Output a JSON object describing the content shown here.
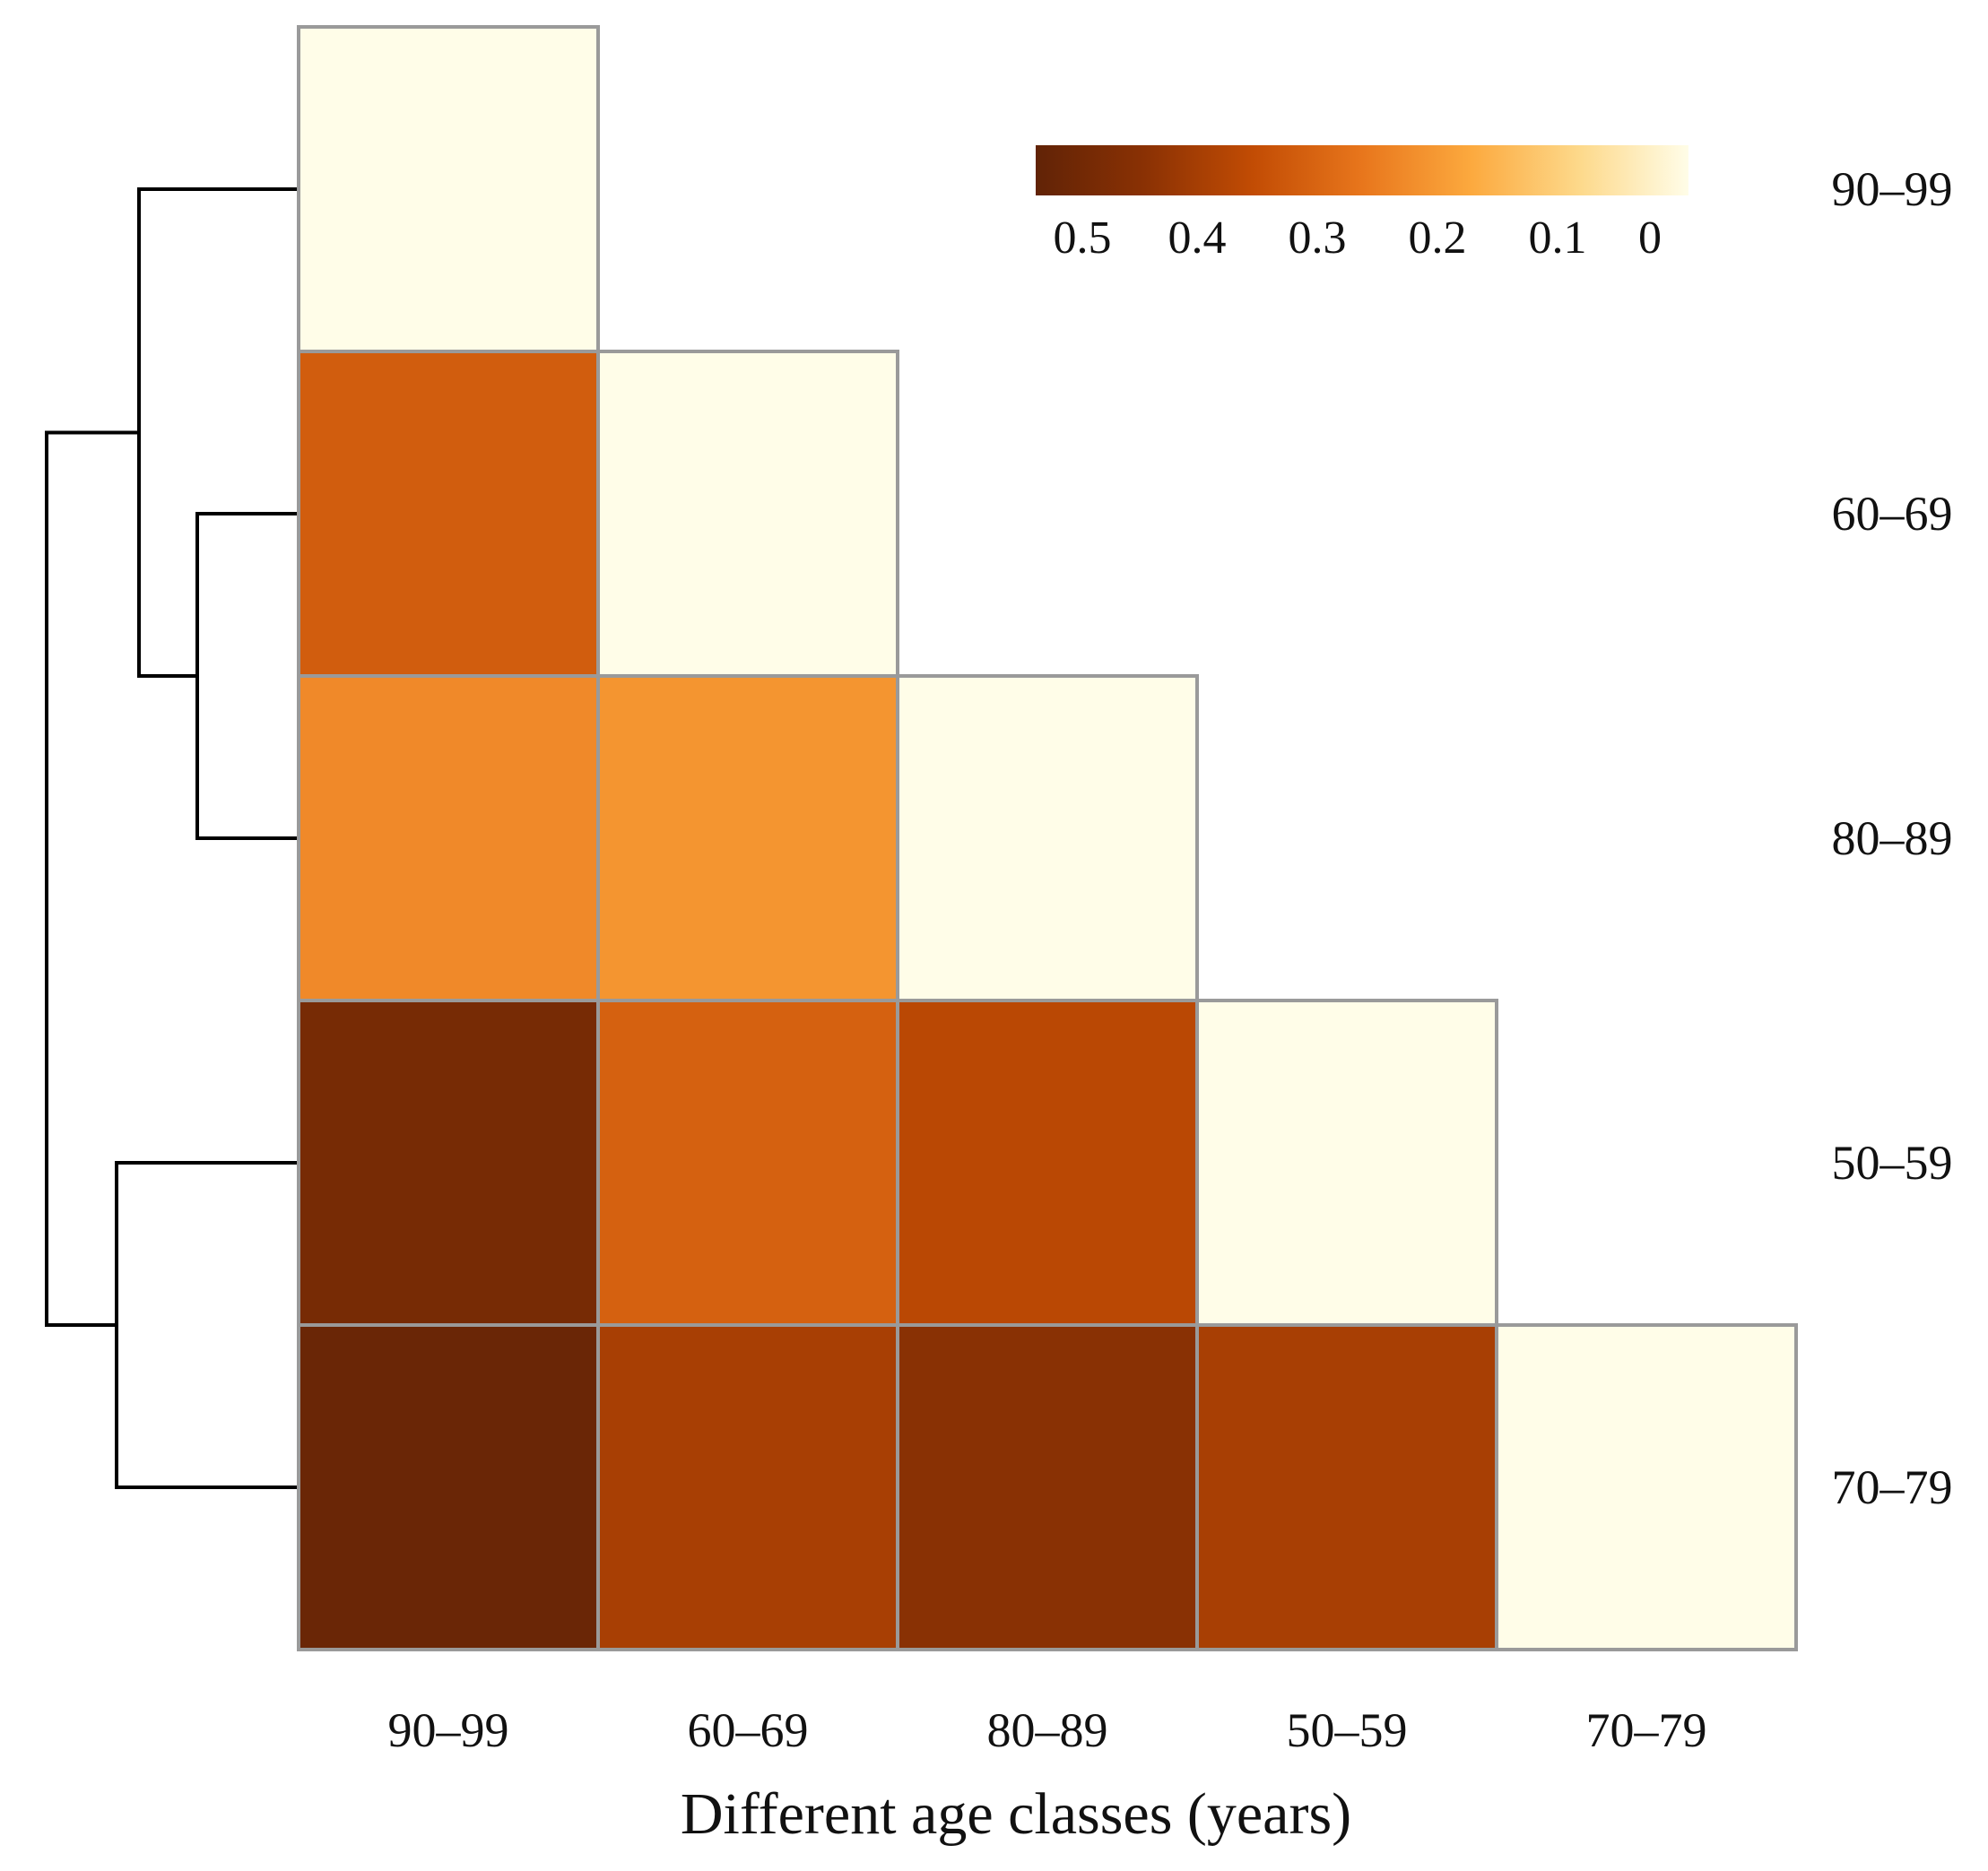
{
  "chart_data": {
    "type": "heatmap",
    "title": "",
    "xlabel": "Different age classes (years)",
    "ylabel": "",
    "categories": [
      "90–99",
      "60–69",
      "80–89",
      "50–59",
      "70–79"
    ],
    "row_labels": [
      "90–99",
      "60–69",
      "80–89",
      "50–59",
      "70–79"
    ],
    "matrix": [
      [
        0.0,
        null,
        null,
        null,
        null
      ],
      [
        0.33,
        0.0,
        null,
        null,
        null
      ],
      [
        0.24,
        0.22,
        0.0,
        null,
        null
      ],
      [
        0.5,
        0.32,
        0.38,
        0.0,
        null
      ],
      [
        0.53,
        0.41,
        0.46,
        0.41,
        0.0
      ]
    ],
    "colorbar": {
      "ticks": [
        "0.5",
        "0.4",
        "0.3",
        "0.2",
        "0.1",
        "0"
      ],
      "range": [
        0.55,
        0
      ],
      "colors": [
        "#612306",
        "#8a3104",
        "#c24c04",
        "#e8761c",
        "#fca93e",
        "#fdd98b",
        "#fffde8"
      ]
    },
    "dendrogram": "row-clustering tree drawn at left",
    "cell_border_color": "#9a9a9a",
    "empty_cell_color": "#fffde8"
  }
}
